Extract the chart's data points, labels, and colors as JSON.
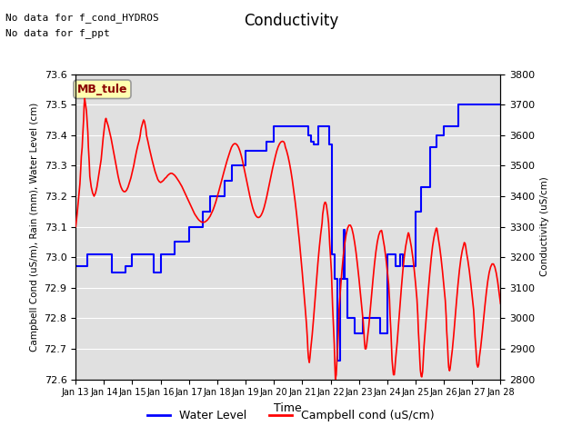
{
  "title": "Conductivity",
  "ylabel_left": "Campbell Cond (uS/m), Rain (mm), Water Level (cm)",
  "ylabel_right": "Conductivity (uS/cm)",
  "xlabel": "Time",
  "ylim_left": [
    72.6,
    73.6
  ],
  "ylim_right": [
    2800,
    3800
  ],
  "annotations": [
    "No data for f_cond_HYDROS",
    "No data for f_ppt"
  ],
  "box_label": "MB_tule",
  "legend_entries": [
    "Water Level",
    "Campbell cond (uS/cm)"
  ],
  "bg_color": "#e0e0e0",
  "grid_color": "white",
  "x_tick_labels": [
    "Jan 13",
    "Jan 14",
    "Jan 15",
    "Jan 16",
    "Jan 17",
    "Jan 18",
    "Jan 19",
    "Jan 20",
    "Jan 21",
    "Jan 22",
    "Jan 23",
    "Jan 24",
    "Jan 25",
    "Jan 26",
    "Jan 27",
    "Jan 28"
  ],
  "water_level_data": [
    [
      13.0,
      72.97
    ],
    [
      13.4,
      73.01
    ],
    [
      13.5,
      73.01
    ],
    [
      14.0,
      73.01
    ],
    [
      14.28,
      72.95
    ],
    [
      14.5,
      72.95
    ],
    [
      14.75,
      72.97
    ],
    [
      15.0,
      73.01
    ],
    [
      15.5,
      73.01
    ],
    [
      15.75,
      72.95
    ],
    [
      16.0,
      73.01
    ],
    [
      16.5,
      73.05
    ],
    [
      17.0,
      73.1
    ],
    [
      17.25,
      73.1
    ],
    [
      17.5,
      73.15
    ],
    [
      17.75,
      73.2
    ],
    [
      18.0,
      73.2
    ],
    [
      18.25,
      73.25
    ],
    [
      18.5,
      73.3
    ],
    [
      18.75,
      73.3
    ],
    [
      19.0,
      73.35
    ],
    [
      19.5,
      73.35
    ],
    [
      19.75,
      73.38
    ],
    [
      20.0,
      73.43
    ],
    [
      20.5,
      73.43
    ],
    [
      20.75,
      73.43
    ],
    [
      21.0,
      73.43
    ],
    [
      21.2,
      73.4
    ],
    [
      21.3,
      73.38
    ],
    [
      21.4,
      73.37
    ],
    [
      21.55,
      73.43
    ],
    [
      21.65,
      73.43
    ],
    [
      21.75,
      73.43
    ],
    [
      21.85,
      73.43
    ],
    [
      21.95,
      73.37
    ],
    [
      22.05,
      73.01
    ],
    [
      22.15,
      72.93
    ],
    [
      22.25,
      72.66
    ],
    [
      22.35,
      72.93
    ],
    [
      22.45,
      73.09
    ],
    [
      22.5,
      72.93
    ],
    [
      22.6,
      72.8
    ],
    [
      22.7,
      72.8
    ],
    [
      22.85,
      72.75
    ],
    [
      23.0,
      72.75
    ],
    [
      23.15,
      72.8
    ],
    [
      23.4,
      72.8
    ],
    [
      23.6,
      72.8
    ],
    [
      23.75,
      72.75
    ],
    [
      24.0,
      73.01
    ],
    [
      24.1,
      73.01
    ],
    [
      24.2,
      73.01
    ],
    [
      24.3,
      72.97
    ],
    [
      24.35,
      72.97
    ],
    [
      24.45,
      73.01
    ],
    [
      24.55,
      72.97
    ],
    [
      24.65,
      72.97
    ],
    [
      24.75,
      72.97
    ],
    [
      25.0,
      73.15
    ],
    [
      25.2,
      73.23
    ],
    [
      25.5,
      73.36
    ],
    [
      25.75,
      73.4
    ],
    [
      26.0,
      73.43
    ],
    [
      26.5,
      73.5
    ],
    [
      27.0,
      73.5
    ],
    [
      27.5,
      73.5
    ],
    [
      28.0,
      73.5
    ]
  ],
  "campbell_cond_data": [
    [
      13.0,
      3300
    ],
    [
      13.05,
      3340
    ],
    [
      13.1,
      3390
    ],
    [
      13.15,
      3440
    ],
    [
      13.18,
      3490
    ],
    [
      13.2,
      3530
    ],
    [
      13.23,
      3560
    ],
    [
      13.25,
      3600
    ],
    [
      13.28,
      3650
    ],
    [
      13.3,
      3700
    ],
    [
      13.32,
      3720
    ],
    [
      13.35,
      3700
    ],
    [
      13.38,
      3680
    ],
    [
      13.4,
      3650
    ],
    [
      13.43,
      3610
    ],
    [
      13.45,
      3560
    ],
    [
      13.48,
      3510
    ],
    [
      13.5,
      3465
    ],
    [
      13.55,
      3430
    ],
    [
      13.6,
      3410
    ],
    [
      13.65,
      3400
    ],
    [
      13.7,
      3410
    ],
    [
      13.75,
      3430
    ],
    [
      13.8,
      3460
    ],
    [
      13.85,
      3490
    ],
    [
      13.9,
      3520
    ],
    [
      13.93,
      3550
    ],
    [
      13.95,
      3570
    ],
    [
      13.97,
      3590
    ],
    [
      14.0,
      3615
    ],
    [
      14.02,
      3630
    ],
    [
      14.05,
      3650
    ],
    [
      14.07,
      3655
    ],
    [
      14.1,
      3645
    ],
    [
      14.15,
      3630
    ],
    [
      14.2,
      3610
    ],
    [
      14.25,
      3590
    ],
    [
      14.3,
      3565
    ],
    [
      14.35,
      3540
    ],
    [
      14.4,
      3515
    ],
    [
      14.45,
      3490
    ],
    [
      14.5,
      3465
    ],
    [
      14.55,
      3445
    ],
    [
      14.6,
      3430
    ],
    [
      14.65,
      3420
    ],
    [
      14.7,
      3415
    ],
    [
      14.75,
      3415
    ],
    [
      14.8,
      3420
    ],
    [
      14.85,
      3430
    ],
    [
      14.9,
      3445
    ],
    [
      14.95,
      3460
    ],
    [
      15.0,
      3480
    ],
    [
      15.05,
      3500
    ],
    [
      15.1,
      3525
    ],
    [
      15.15,
      3548
    ],
    [
      15.2,
      3568
    ],
    [
      15.25,
      3585
    ],
    [
      15.28,
      3600
    ],
    [
      15.3,
      3615
    ],
    [
      15.32,
      3625
    ],
    [
      15.35,
      3635
    ],
    [
      15.38,
      3645
    ],
    [
      15.4,
      3650
    ],
    [
      15.43,
      3645
    ],
    [
      15.45,
      3635
    ],
    [
      15.48,
      3620
    ],
    [
      15.5,
      3600
    ],
    [
      15.55,
      3580
    ],
    [
      15.6,
      3558
    ],
    [
      15.65,
      3538
    ],
    [
      15.7,
      3518
    ],
    [
      15.75,
      3500
    ],
    [
      15.8,
      3482
    ],
    [
      15.85,
      3468
    ],
    [
      15.9,
      3455
    ],
    [
      15.95,
      3448
    ],
    [
      16.0,
      3445
    ],
    [
      16.05,
      3448
    ],
    [
      16.1,
      3452
    ],
    [
      16.15,
      3458
    ],
    [
      16.2,
      3462
    ],
    [
      16.25,
      3468
    ],
    [
      16.3,
      3472
    ],
    [
      16.35,
      3475
    ],
    [
      16.4,
      3475
    ],
    [
      16.45,
      3472
    ],
    [
      16.5,
      3468
    ],
    [
      16.55,
      3462
    ],
    [
      16.6,
      3455
    ],
    [
      16.65,
      3448
    ],
    [
      16.7,
      3440
    ],
    [
      16.75,
      3432
    ],
    [
      16.8,
      3422
    ],
    [
      16.85,
      3412
    ],
    [
      16.9,
      3402
    ],
    [
      16.95,
      3392
    ],
    [
      17.0,
      3382
    ],
    [
      17.05,
      3372
    ],
    [
      17.1,
      3362
    ],
    [
      17.15,
      3352
    ],
    [
      17.2,
      3342
    ],
    [
      17.25,
      3335
    ],
    [
      17.3,
      3328
    ],
    [
      17.35,
      3322
    ],
    [
      17.4,
      3318
    ],
    [
      17.45,
      3315
    ],
    [
      17.5,
      3315
    ],
    [
      17.55,
      3315
    ],
    [
      17.6,
      3318
    ],
    [
      17.65,
      3322
    ],
    [
      17.7,
      3328
    ],
    [
      17.75,
      3335
    ],
    [
      17.8,
      3345
    ],
    [
      17.85,
      3355
    ],
    [
      17.9,
      3368
    ],
    [
      17.95,
      3382
    ],
    [
      18.0,
      3398
    ],
    [
      18.05,
      3415
    ],
    [
      18.1,
      3432
    ],
    [
      18.15,
      3450
    ],
    [
      18.2,
      3468
    ],
    [
      18.25,
      3485
    ],
    [
      18.3,
      3502
    ],
    [
      18.35,
      3518
    ],
    [
      18.4,
      3533
    ],
    [
      18.45,
      3547
    ],
    [
      18.5,
      3560
    ],
    [
      18.55,
      3568
    ],
    [
      18.6,
      3572
    ],
    [
      18.65,
      3572
    ],
    [
      18.7,
      3568
    ],
    [
      18.75,
      3560
    ],
    [
      18.8,
      3548
    ],
    [
      18.85,
      3532
    ],
    [
      18.9,
      3512
    ],
    [
      18.95,
      3490
    ],
    [
      19.0,
      3468
    ],
    [
      19.05,
      3445
    ],
    [
      19.1,
      3422
    ],
    [
      19.15,
      3400
    ],
    [
      19.2,
      3380
    ],
    [
      19.25,
      3362
    ],
    [
      19.3,
      3348
    ],
    [
      19.35,
      3338
    ],
    [
      19.4,
      3332
    ],
    [
      19.45,
      3330
    ],
    [
      19.5,
      3332
    ],
    [
      19.55,
      3338
    ],
    [
      19.6,
      3348
    ],
    [
      19.65,
      3362
    ],
    [
      19.7,
      3380
    ],
    [
      19.75,
      3400
    ],
    [
      19.8,
      3422
    ],
    [
      19.85,
      3445
    ],
    [
      19.9,
      3468
    ],
    [
      19.95,
      3490
    ],
    [
      20.0,
      3510
    ],
    [
      20.05,
      3530
    ],
    [
      20.1,
      3548
    ],
    [
      20.15,
      3562
    ],
    [
      20.2,
      3572
    ],
    [
      20.25,
      3578
    ],
    [
      20.3,
      3580
    ],
    [
      20.35,
      3578
    ],
    [
      20.38,
      3572
    ],
    [
      20.4,
      3562
    ],
    [
      20.45,
      3548
    ],
    [
      20.5,
      3530
    ],
    [
      20.55,
      3508
    ],
    [
      20.6,
      3482
    ],
    [
      20.65,
      3452
    ],
    [
      20.7,
      3418
    ],
    [
      20.75,
      3382
    ],
    [
      20.8,
      3342
    ],
    [
      20.85,
      3298
    ],
    [
      20.9,
      3252
    ],
    [
      20.95,
      3202
    ],
    [
      21.0,
      3150
    ],
    [
      21.05,
      3095
    ],
    [
      21.1,
      3038
    ],
    [
      21.15,
      2980
    ],
    [
      21.18,
      2935
    ],
    [
      21.2,
      2895
    ],
    [
      21.22,
      2870
    ],
    [
      21.25,
      2855
    ],
    [
      21.27,
      2870
    ],
    [
      21.3,
      2900
    ],
    [
      21.35,
      2945
    ],
    [
      21.4,
      3000
    ],
    [
      21.45,
      3060
    ],
    [
      21.5,
      3120
    ],
    [
      21.55,
      3178
    ],
    [
      21.6,
      3230
    ],
    [
      21.65,
      3275
    ],
    [
      21.7,
      3312
    ],
    [
      21.72,
      3340
    ],
    [
      21.75,
      3360
    ],
    [
      21.77,
      3372
    ],
    [
      21.8,
      3380
    ],
    [
      21.82,
      3380
    ],
    [
      21.85,
      3372
    ],
    [
      21.87,
      3358
    ],
    [
      21.9,
      3338
    ],
    [
      21.93,
      3312
    ],
    [
      21.95,
      3280
    ],
    [
      21.97,
      3242
    ],
    [
      22.0,
      3200
    ],
    [
      22.03,
      3152
    ],
    [
      22.05,
      3100
    ],
    [
      22.07,
      3042
    ],
    [
      22.1,
      2980
    ],
    [
      22.13,
      2915
    ],
    [
      22.15,
      2850
    ],
    [
      22.17,
      2800
    ],
    [
      22.2,
      2815
    ],
    [
      22.22,
      2855
    ],
    [
      22.25,
      2905
    ],
    [
      22.28,
      2965
    ],
    [
      22.3,
      3030
    ],
    [
      22.35,
      3095
    ],
    [
      22.4,
      3155
    ],
    [
      22.45,
      3205
    ],
    [
      22.5,
      3245
    ],
    [
      22.55,
      3275
    ],
    [
      22.6,
      3295
    ],
    [
      22.65,
      3305
    ],
    [
      22.7,
      3305
    ],
    [
      22.75,
      3295
    ],
    [
      22.8,
      3275
    ],
    [
      22.85,
      3248
    ],
    [
      22.9,
      3215
    ],
    [
      22.95,
      3175
    ],
    [
      23.0,
      3132
    ],
    [
      23.05,
      3085
    ],
    [
      23.1,
      3038
    ],
    [
      23.15,
      2990
    ],
    [
      23.18,
      2950
    ],
    [
      23.2,
      2918
    ],
    [
      23.22,
      2900
    ],
    [
      23.25,
      2900
    ],
    [
      23.27,
      2910
    ],
    [
      23.3,
      2935
    ],
    [
      23.35,
      2975
    ],
    [
      23.4,
      3025
    ],
    [
      23.45,
      3078
    ],
    [
      23.5,
      3130
    ],
    [
      23.55,
      3178
    ],
    [
      23.6,
      3218
    ],
    [
      23.65,
      3250
    ],
    [
      23.7,
      3272
    ],
    [
      23.75,
      3285
    ],
    [
      23.8,
      3288
    ],
    [
      23.82,
      3280
    ],
    [
      23.85,
      3262
    ],
    [
      23.9,
      3235
    ],
    [
      23.95,
      3200
    ],
    [
      24.0,
      3158
    ],
    [
      24.05,
      3112
    ],
    [
      24.08,
      3062
    ],
    [
      24.1,
      3010
    ],
    [
      24.13,
      2958
    ],
    [
      24.15,
      2908
    ],
    [
      24.17,
      2865
    ],
    [
      24.2,
      2832
    ],
    [
      24.22,
      2815
    ],
    [
      24.25,
      2815
    ],
    [
      24.27,
      2835
    ],
    [
      24.3,
      2870
    ],
    [
      24.35,
      2920
    ],
    [
      24.4,
      2978
    ],
    [
      24.45,
      3040
    ],
    [
      24.5,
      3100
    ],
    [
      24.55,
      3155
    ],
    [
      24.6,
      3200
    ],
    [
      24.65,
      3235
    ],
    [
      24.7,
      3260
    ],
    [
      24.73,
      3275
    ],
    [
      24.75,
      3280
    ],
    [
      24.77,
      3275
    ],
    [
      24.8,
      3260
    ],
    [
      24.85,
      3235
    ],
    [
      24.9,
      3202
    ],
    [
      24.95,
      3162
    ],
    [
      25.0,
      3115
    ],
    [
      25.05,
      3062
    ],
    [
      25.08,
      3010
    ],
    [
      25.1,
      2958
    ],
    [
      25.13,
      2908
    ],
    [
      25.15,
      2865
    ],
    [
      25.17,
      2830
    ],
    [
      25.2,
      2810
    ],
    [
      25.22,
      2808
    ],
    [
      25.25,
      2825
    ],
    [
      25.27,
      2860
    ],
    [
      25.3,
      2910
    ],
    [
      25.35,
      2968
    ],
    [
      25.4,
      3030
    ],
    [
      25.45,
      3090
    ],
    [
      25.5,
      3145
    ],
    [
      25.55,
      3195
    ],
    [
      25.6,
      3235
    ],
    [
      25.65,
      3265
    ],
    [
      25.7,
      3285
    ],
    [
      25.73,
      3295
    ],
    [
      25.75,
      3295
    ],
    [
      25.77,
      3285
    ],
    [
      25.8,
      3265
    ],
    [
      25.85,
      3235
    ],
    [
      25.9,
      3198
    ],
    [
      25.95,
      3155
    ],
    [
      26.0,
      3108
    ],
    [
      26.05,
      3058
    ],
    [
      26.08,
      3008
    ],
    [
      26.1,
      2958
    ],
    [
      26.13,
      2912
    ],
    [
      26.15,
      2870
    ],
    [
      26.17,
      2840
    ],
    [
      26.2,
      2828
    ],
    [
      26.22,
      2835
    ],
    [
      26.25,
      2858
    ],
    [
      26.3,
      2898
    ],
    [
      26.35,
      2948
    ],
    [
      26.4,
      3005
    ],
    [
      26.45,
      3060
    ],
    [
      26.5,
      3112
    ],
    [
      26.55,
      3158
    ],
    [
      26.6,
      3195
    ],
    [
      26.65,
      3222
    ],
    [
      26.7,
      3240
    ],
    [
      26.72,
      3248
    ],
    [
      26.75,
      3245
    ],
    [
      26.77,
      3235
    ],
    [
      26.8,
      3215
    ],
    [
      26.85,
      3188
    ],
    [
      26.9,
      3155
    ],
    [
      26.95,
      3115
    ],
    [
      27.0,
      3072
    ],
    [
      27.05,
      3028
    ],
    [
      27.08,
      2982
    ],
    [
      27.1,
      2940
    ],
    [
      27.13,
      2902
    ],
    [
      27.15,
      2870
    ],
    [
      27.17,
      2848
    ],
    [
      27.2,
      2840
    ],
    [
      27.23,
      2848
    ],
    [
      27.25,
      2870
    ],
    [
      27.3,
      2905
    ],
    [
      27.35,
      2948
    ],
    [
      27.4,
      2995
    ],
    [
      27.45,
      3042
    ],
    [
      27.5,
      3085
    ],
    [
      27.55,
      3122
    ],
    [
      27.6,
      3150
    ],
    [
      27.65,
      3168
    ],
    [
      27.7,
      3178
    ],
    [
      27.75,
      3178
    ],
    [
      27.8,
      3168
    ],
    [
      27.85,
      3148
    ],
    [
      27.9,
      3120
    ],
    [
      27.95,
      3085
    ],
    [
      28.0,
      3048
    ]
  ]
}
